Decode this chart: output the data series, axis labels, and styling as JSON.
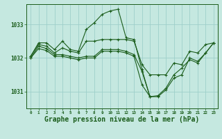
{
  "background_color": "#c5e8e0",
  "grid_color": "#9ecfca",
  "line_color": "#1a5c1a",
  "marker_color": "#1a5c1a",
  "xlabel": "Graphe pression niveau de la mer (hPa)",
  "xlabel_fontsize": 7,
  "ylabel_values": [
    1031,
    1032,
    1033
  ],
  "xlim": [
    -0.5,
    23.5
  ],
  "ylim": [
    1030.5,
    1033.6
  ],
  "series": [
    {
      "x": [
        0,
        1,
        2,
        3,
        4,
        5,
        6,
        7,
        8,
        9,
        10,
        11,
        12,
        13,
        14,
        15
      ],
      "y": [
        1032.05,
        1032.45,
        1032.45,
        1032.25,
        1032.5,
        1032.25,
        1032.2,
        1032.85,
        1033.05,
        1033.3,
        1033.4,
        1033.45,
        1032.6,
        1032.55,
        1031.65,
        1030.85
      ]
    },
    {
      "x": [
        0,
        1,
        2,
        3,
        4,
        5,
        6,
        7,
        8,
        9,
        10,
        11,
        12,
        13,
        14,
        15,
        16,
        17,
        18,
        19,
        20,
        21,
        22,
        23
      ],
      "y": [
        1032.05,
        1032.4,
        1032.35,
        1032.15,
        1032.3,
        1032.2,
        1032.15,
        1032.5,
        1032.5,
        1032.55,
        1032.55,
        1032.55,
        1032.55,
        1032.5,
        1031.8,
        1031.5,
        1031.5,
        1031.5,
        1031.85,
        1031.8,
        1032.2,
        1032.15,
        1032.4,
        1032.45
      ]
    },
    {
      "x": [
        0,
        1,
        2,
        3,
        4,
        5,
        6,
        7,
        8,
        9,
        10,
        11,
        12,
        13,
        14,
        15,
        16,
        17,
        18,
        19,
        20,
        21,
        22,
        23
      ],
      "y": [
        1032.0,
        1032.35,
        1032.28,
        1032.1,
        1032.1,
        1032.05,
        1032.0,
        1032.05,
        1032.05,
        1032.25,
        1032.25,
        1032.25,
        1032.2,
        1032.1,
        1031.6,
        1030.85,
        1030.85,
        1031.05,
        1031.4,
        1031.5,
        1032.0,
        1031.9,
        1032.15,
        1032.45
      ]
    },
    {
      "x": [
        0,
        1,
        2,
        3,
        4,
        5,
        6,
        7,
        8,
        9,
        10,
        11,
        12,
        13,
        14,
        15,
        16,
        17,
        18,
        19,
        20,
        21,
        22,
        23
      ],
      "y": [
        1032.0,
        1032.28,
        1032.22,
        1032.05,
        1032.05,
        1032.0,
        1031.95,
        1032.0,
        1032.0,
        1032.2,
        1032.2,
        1032.2,
        1032.15,
        1032.05,
        1031.2,
        1030.85,
        1030.88,
        1031.1,
        1031.5,
        1031.7,
        1031.95,
        1031.85,
        1032.15,
        1032.45
      ]
    }
  ],
  "xtick_labels": [
    "0",
    "1",
    "2",
    "3",
    "4",
    "5",
    "6",
    "7",
    "8",
    "9",
    "10",
    "11",
    "12",
    "13",
    "14",
    "15",
    "16",
    "17",
    "18",
    "19",
    "20",
    "21",
    "22",
    "23"
  ]
}
